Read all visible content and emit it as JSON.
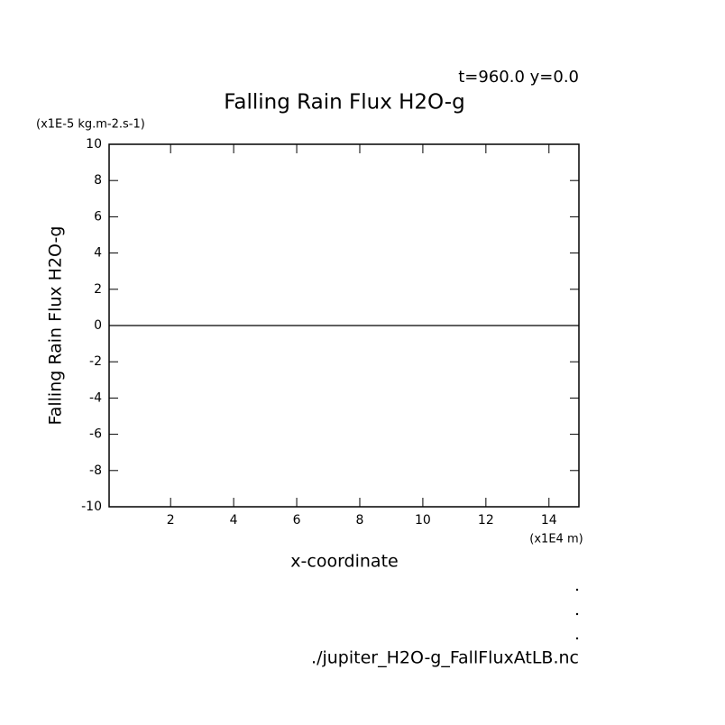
{
  "chart_data": {
    "type": "line",
    "title": "Falling Rain Flux H2O-g",
    "subtitle": "t=960.0 y=0.0",
    "y_unit": "(x1E-5 kg.m-2.s-1)",
    "x_unit": "(x1E4 m)",
    "xlabel": "x-coordinate",
    "ylabel": "Falling Rain Flux H2O-g",
    "footer": "./jupiter_H2O-g_FallFluxAtLB.nc",
    "x": [
      0.05,
      14.95
    ],
    "series": [
      {
        "color": "#000000",
        "values": [
          0,
          0
        ]
      }
    ],
    "xlim": [
      0.05,
      14.95
    ],
    "xticks": [
      2,
      4,
      6,
      8,
      10,
      12,
      14
    ],
    "ylim": [
      -10,
      10
    ],
    "yticks": [
      -10,
      -8,
      -6,
      -4,
      -2,
      0,
      2,
      4,
      6,
      8,
      10
    ],
    "grid": false
  }
}
